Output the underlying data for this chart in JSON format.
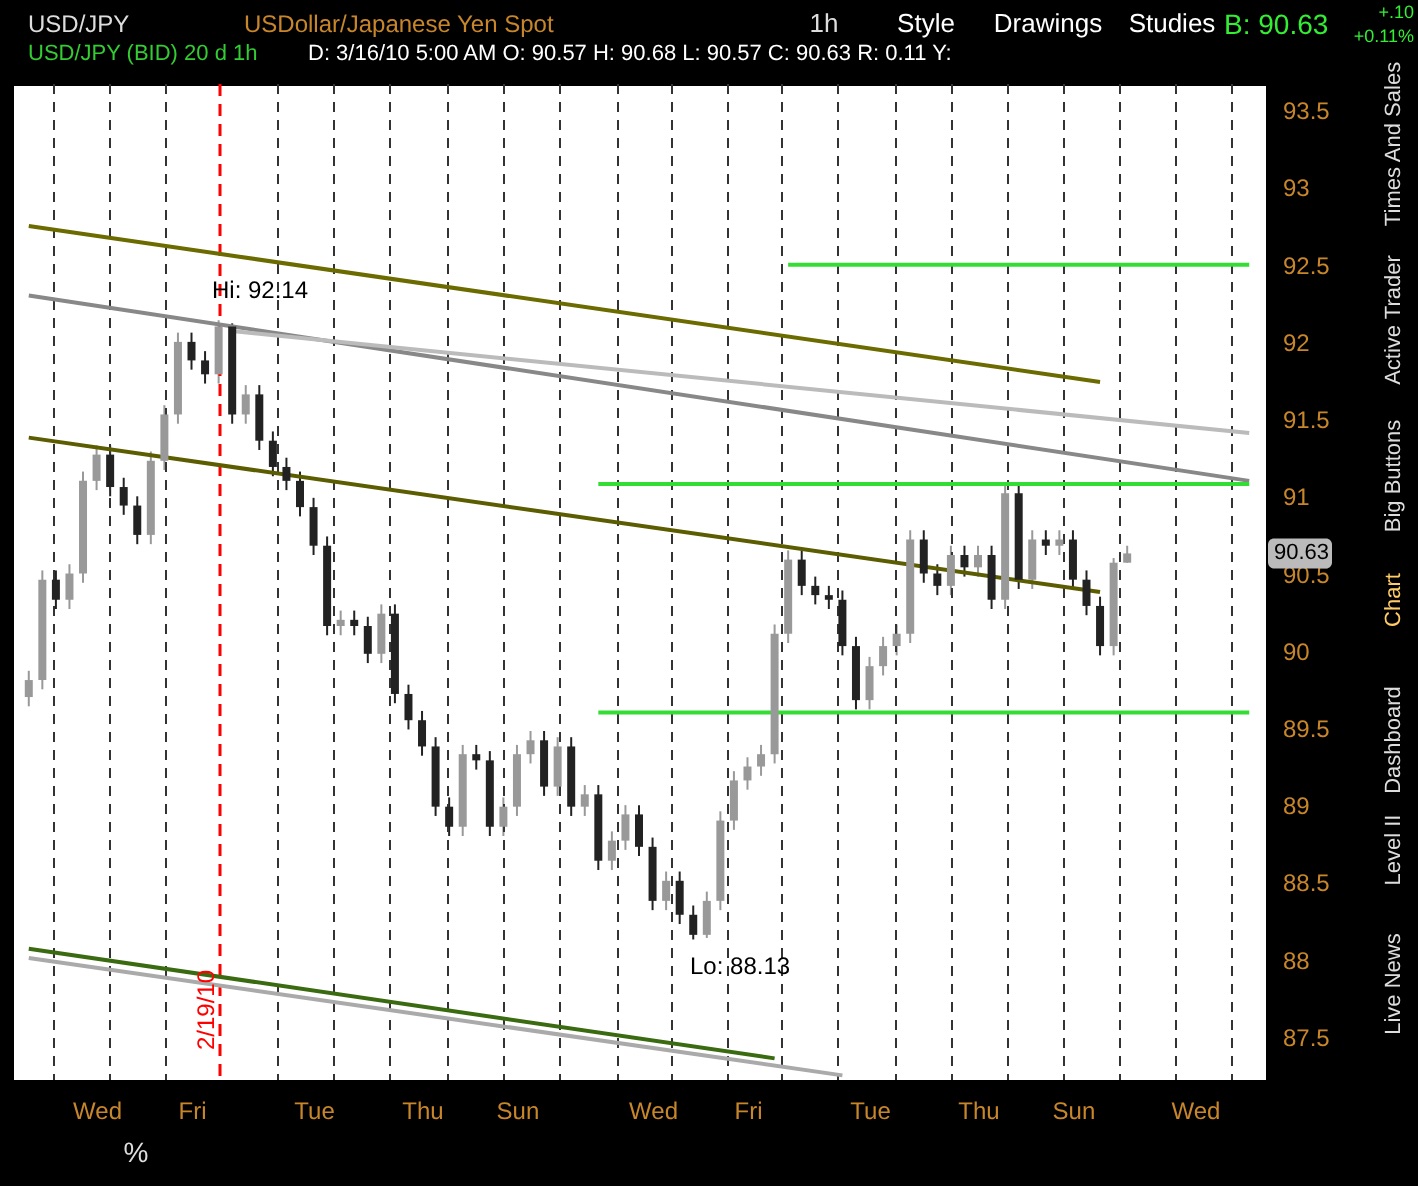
{
  "chart_data": {
    "type": "candlestick",
    "title": "USD/JPY (BID) 20 d 1h",
    "subtitle": "D: 3/16/10 5:00 AM   O: 90.57   H: 90.68   L: 90.57   C: 90.63   R: 0.11   Y:",
    "categories": [
      null,
      null,
      null,
      null,
      null,
      "Wed",
      null,
      null,
      null,
      null,
      null,
      null,
      "Fri",
      null,
      null,
      null,
      null,
      null,
      null,
      null,
      null,
      "Tue",
      null,
      null,
      null,
      null,
      null,
      null,
      null,
      "Thu",
      null,
      null,
      null,
      null,
      null,
      null,
      "Sun",
      null,
      null,
      null,
      null,
      null,
      null,
      null,
      null,
      null,
      "Wed",
      null,
      null,
      null,
      null,
      null,
      null,
      "Fri",
      null,
      null,
      null,
      null,
      null,
      null,
      null,
      null,
      "Tue",
      null,
      null,
      null,
      null,
      null,
      null,
      null,
      "Thu",
      null,
      null,
      null,
      null,
      null,
      null,
      "Sun",
      null,
      null,
      null,
      null,
      null,
      null,
      null,
      null,
      "Wed",
      null,
      null,
      null,
      null
    ],
    "ohlc": [
      [
        89.7,
        89.87,
        89.64,
        89.81
      ],
      [
        89.81,
        90.52,
        89.75,
        90.46
      ],
      [
        90.46,
        90.52,
        90.27,
        90.33
      ],
      [
        90.33,
        90.56,
        90.27,
        90.5
      ],
      [
        90.5,
        91.16,
        90.44,
        91.1
      ],
      [
        91.1,
        91.33,
        91.04,
        91.27
      ],
      [
        91.27,
        91.33,
        91.0,
        91.06
      ],
      [
        91.06,
        91.12,
        90.88,
        90.94
      ],
      [
        90.94,
        91.0,
        90.69,
        90.75
      ],
      [
        90.75,
        91.29,
        90.69,
        91.23
      ],
      [
        91.23,
        91.59,
        91.17,
        91.53
      ],
      [
        91.53,
        92.06,
        91.47,
        92.0
      ],
      [
        92.0,
        92.06,
        91.82,
        91.88
      ],
      [
        91.88,
        91.94,
        91.73,
        91.79
      ],
      [
        91.79,
        92.14,
        91.73,
        92.1
      ],
      [
        92.1,
        92.12,
        91.47,
        91.53
      ],
      [
        91.53,
        91.72,
        91.47,
        91.66
      ],
      [
        91.66,
        91.72,
        91.3,
        91.36
      ],
      [
        91.36,
        91.42,
        91.13,
        91.19
      ],
      [
        91.19,
        91.25,
        91.04,
        91.1
      ],
      [
        91.1,
        91.16,
        90.87,
        90.93
      ],
      [
        90.93,
        90.99,
        90.62,
        90.68
      ],
      [
        90.68,
        90.74,
        90.1,
        90.16
      ],
      [
        90.16,
        90.26,
        90.1,
        90.2
      ],
      [
        90.2,
        90.26,
        90.1,
        90.16
      ],
      [
        90.16,
        90.22,
        89.92,
        89.98
      ],
      [
        89.98,
        90.3,
        89.92,
        90.24
      ],
      [
        90.24,
        90.3,
        89.66,
        89.72
      ],
      [
        89.72,
        89.78,
        89.49,
        89.55
      ],
      [
        89.55,
        89.61,
        89.32,
        89.38
      ],
      [
        89.38,
        89.44,
        88.93,
        88.99
      ],
      [
        88.99,
        89.05,
        88.8,
        88.86
      ],
      [
        88.86,
        89.39,
        88.8,
        89.33
      ],
      [
        89.33,
        89.39,
        89.23,
        89.29
      ],
      [
        89.29,
        89.35,
        88.8,
        88.86
      ],
      [
        88.86,
        89.05,
        88.8,
        88.99
      ],
      [
        88.99,
        89.39,
        88.93,
        89.33
      ],
      [
        89.33,
        89.48,
        89.27,
        89.42
      ],
      [
        89.42,
        89.48,
        89.06,
        89.12
      ],
      [
        89.12,
        89.44,
        89.06,
        89.38
      ],
      [
        89.38,
        89.44,
        88.93,
        88.99
      ],
      [
        88.99,
        89.13,
        88.93,
        89.07
      ],
      [
        89.07,
        89.13,
        88.58,
        88.64
      ],
      [
        88.64,
        88.83,
        88.58,
        88.77
      ],
      [
        88.77,
        89.0,
        88.71,
        88.94
      ],
      [
        88.94,
        89.0,
        88.67,
        88.73
      ],
      [
        88.73,
        88.79,
        88.32,
        88.38
      ],
      [
        88.38,
        88.57,
        88.32,
        88.51
      ],
      [
        88.51,
        88.57,
        88.23,
        88.29
      ],
      [
        88.29,
        88.35,
        88.13,
        88.16
      ],
      [
        88.16,
        88.44,
        88.14,
        88.38
      ],
      [
        88.38,
        88.96,
        88.32,
        88.9
      ],
      [
        88.9,
        89.22,
        88.84,
        89.16
      ],
      [
        89.16,
        89.31,
        89.1,
        89.25
      ],
      [
        89.25,
        89.39,
        89.19,
        89.33
      ],
      [
        89.33,
        90.17,
        89.27,
        90.11
      ],
      [
        90.11,
        90.65,
        90.05,
        90.59
      ],
      [
        90.59,
        90.65,
        90.36,
        90.42
      ],
      [
        90.42,
        90.48,
        90.3,
        90.36
      ],
      [
        90.36,
        90.42,
        90.27,
        90.33
      ],
      [
        90.33,
        90.39,
        89.97,
        90.03
      ],
      [
        90.03,
        90.09,
        89.62,
        89.68
      ],
      [
        89.68,
        89.96,
        89.62,
        89.9
      ],
      [
        89.9,
        90.09,
        89.84,
        90.03
      ],
      [
        90.03,
        90.17,
        89.97,
        90.11
      ],
      [
        90.11,
        90.78,
        90.05,
        90.72
      ],
      [
        90.72,
        90.78,
        90.44,
        90.5
      ],
      [
        90.5,
        90.56,
        90.36,
        90.42
      ],
      [
        90.42,
        90.68,
        90.36,
        90.62
      ],
      [
        90.62,
        90.68,
        90.48,
        90.54
      ],
      [
        90.54,
        90.68,
        90.48,
        90.62
      ],
      [
        90.62,
        90.68,
        90.27,
        90.33
      ],
      [
        90.33,
        91.08,
        90.27,
        91.02
      ],
      [
        91.02,
        91.08,
        90.4,
        90.46
      ],
      [
        90.46,
        90.78,
        90.4,
        90.72
      ],
      [
        90.72,
        90.78,
        90.62,
        90.68
      ],
      [
        90.68,
        90.78,
        90.62,
        90.72
      ],
      [
        90.72,
        90.78,
        90.4,
        90.46
      ],
      [
        90.46,
        90.52,
        90.23,
        90.29
      ],
      [
        90.29,
        90.35,
        89.97,
        90.03
      ],
      [
        90.03,
        90.6,
        89.97,
        90.57
      ],
      [
        90.57,
        90.68,
        90.57,
        90.63
      ],
      null,
      null,
      null,
      null,
      null,
      null,
      null,
      null,
      null
    ],
    "colors": [
      "#999999",
      "#999999",
      "#222222",
      "#999999",
      "#999999",
      "#999999",
      "#222222",
      "#222222",
      "#222222",
      "#999999",
      "#999999",
      "#999999",
      "#222222",
      "#222222",
      "#999999",
      "#222222",
      "#999999",
      "#222222",
      "#222222",
      "#222222",
      "#222222",
      "#222222",
      "#222222",
      "#999999",
      "#222222",
      "#222222",
      "#999999",
      "#222222",
      "#222222",
      "#222222",
      "#222222",
      "#222222",
      "#999999",
      "#222222",
      "#222222",
      "#999999",
      "#999999",
      "#999999",
      "#222222",
      "#999999",
      "#222222",
      "#999999",
      "#222222",
      "#999999",
      "#999999",
      "#222222",
      "#222222",
      "#999999",
      "#222222",
      "#222222",
      "#999999",
      "#999999",
      "#999999",
      "#999999",
      "#999999",
      "#999999",
      "#999999",
      "#222222",
      "#222222",
      "#222222",
      "#222222",
      "#222222",
      "#999999",
      "#999999",
      "#999999",
      "#999999",
      "#222222",
      "#222222",
      "#999999",
      "#222222",
      "#999999",
      "#222222",
      "#999999",
      "#222222",
      "#999999",
      "#222222",
      "#999999",
      "#222222",
      "#222222",
      "#222222",
      "#999999",
      "#999999",
      null,
      null,
      null,
      null,
      null,
      null,
      null,
      null,
      null
    ],
    "series": [
      {
        "type": "line",
        "color": "#6b6b00",
        "values": [
          92.75,
          null,
          null,
          null,
          null,
          null,
          null,
          null,
          null,
          null,
          null,
          null,
          null,
          null,
          null,
          null,
          null,
          null,
          null,
          null,
          null,
          null,
          null,
          null,
          null,
          null,
          null,
          null,
          null,
          null,
          null,
          null,
          null,
          null,
          null,
          null,
          null,
          null,
          null,
          null,
          null,
          null,
          null,
          null,
          null,
          null,
          null,
          null,
          null,
          null,
          null,
          null,
          null,
          null,
          null,
          null,
          null,
          null,
          null,
          null,
          null,
          null,
          null,
          null,
          null,
          null,
          null,
          null,
          null,
          null,
          null,
          null,
          null,
          null,
          null,
          null,
          null,
          null,
          null,
          91.74,
          null,
          null,
          null,
          null,
          null,
          null,
          null,
          null,
          null,
          null,
          null
        ]
      },
      {
        "type": "line",
        "color": "#5c5c00",
        "values": [
          91.38,
          null,
          null,
          null,
          null,
          null,
          null,
          null,
          null,
          null,
          null,
          null,
          null,
          null,
          null,
          null,
          null,
          null,
          null,
          null,
          null,
          null,
          null,
          null,
          null,
          null,
          null,
          null,
          null,
          null,
          null,
          null,
          null,
          null,
          null,
          null,
          null,
          null,
          null,
          null,
          null,
          null,
          null,
          null,
          null,
          null,
          null,
          null,
          null,
          null,
          null,
          null,
          null,
          null,
          null,
          null,
          null,
          null,
          null,
          null,
          null,
          null,
          null,
          null,
          null,
          null,
          null,
          null,
          null,
          null,
          null,
          null,
          null,
          null,
          null,
          null,
          null,
          null,
          null,
          90.38,
          null,
          null,
          null,
          null,
          null,
          null,
          null,
          null,
          null,
          null,
          null
        ]
      },
      {
        "type": "line",
        "color": "#3a6b10",
        "values": [
          88.07,
          null,
          null,
          null,
          null,
          null,
          null,
          null,
          null,
          null,
          null,
          null,
          null,
          null,
          null,
          null,
          null,
          null,
          null,
          null,
          null,
          null,
          null,
          null,
          null,
          null,
          null,
          null,
          null,
          null,
          null,
          null,
          null,
          null,
          null,
          null,
          null,
          null,
          null,
          null,
          null,
          null,
          null,
          null,
          null,
          null,
          null,
          null,
          null,
          null,
          null,
          null,
          null,
          null,
          null,
          87.36,
          null,
          null,
          null,
          null,
          null,
          null,
          null,
          null,
          null,
          null,
          null,
          null,
          null,
          null,
          null,
          null,
          null,
          null,
          null,
          null,
          null,
          null,
          null,
          null,
          null,
          null,
          null,
          null,
          null,
          null,
          null,
          null,
          null,
          null,
          null
        ]
      },
      {
        "type": "line",
        "color": "#888888",
        "values": [
          92.3,
          null,
          null,
          null,
          null,
          null,
          null,
          null,
          null,
          null,
          null,
          null,
          null,
          null,
          null,
          null,
          null,
          null,
          null,
          null,
          null,
          null,
          null,
          null,
          null,
          null,
          null,
          null,
          null,
          null,
          null,
          null,
          null,
          null,
          null,
          null,
          null,
          null,
          null,
          null,
          null,
          null,
          null,
          null,
          null,
          null,
          null,
          null,
          null,
          null,
          null,
          null,
          null,
          null,
          null,
          null,
          null,
          null,
          null,
          null,
          null,
          null,
          null,
          null,
          null,
          null,
          null,
          null,
          null,
          null,
          null,
          null,
          null,
          null,
          null,
          null,
          null,
          null,
          null,
          null,
          null,
          null,
          null,
          null,
          null,
          null,
          null,
          null,
          null,
          null,
          91.1
        ]
      },
      {
        "type": "line",
        "color": "#bbbbbb",
        "values": [
          null,
          null,
          null,
          null,
          null,
          null,
          null,
          null,
          null,
          null,
          null,
          null,
          null,
          null,
          null,
          92.07,
          null,
          null,
          null,
          null,
          null,
          null,
          null,
          null,
          null,
          null,
          null,
          null,
          null,
          null,
          null,
          null,
          null,
          null,
          null,
          null,
          null,
          null,
          null,
          null,
          null,
          null,
          null,
          null,
          null,
          null,
          null,
          null,
          null,
          null,
          null,
          null,
          null,
          null,
          null,
          null,
          null,
          null,
          null,
          null,
          null,
          null,
          null,
          null,
          null,
          null,
          null,
          null,
          null,
          null,
          null,
          null,
          null,
          null,
          null,
          null,
          null,
          null,
          null,
          null,
          null,
          null,
          null,
          null,
          null,
          null,
          null,
          null,
          null,
          null,
          91.41
        ]
      },
      {
        "type": "line",
        "color": "#aaaaaa",
        "values": [
          88.01,
          null,
          null,
          null,
          null,
          null,
          null,
          null,
          null,
          null,
          null,
          null,
          null,
          null,
          null,
          null,
          null,
          null,
          null,
          null,
          null,
          null,
          null,
          null,
          null,
          null,
          null,
          null,
          null,
          null,
          null,
          null,
          null,
          null,
          null,
          null,
          null,
          null,
          null,
          null,
          null,
          null,
          null,
          null,
          null,
          null,
          null,
          null,
          null,
          null,
          null,
          null,
          null,
          null,
          null,
          null,
          null,
          null,
          null,
          null,
          87.25,
          null,
          null,
          null,
          null,
          null,
          null,
          null,
          null,
          null,
          null,
          null,
          null,
          null,
          null,
          null,
          null,
          null,
          null,
          null,
          null,
          null,
          null,
          null,
          null,
          null,
          null,
          null,
          null,
          null,
          null
        ]
      },
      {
        "type": "line",
        "color": "#33dd33",
        "values": [
          null,
          null,
          null,
          null,
          null,
          null,
          null,
          null,
          null,
          null,
          null,
          null,
          null,
          null,
          null,
          null,
          null,
          null,
          null,
          null,
          null,
          null,
          null,
          null,
          null,
          null,
          null,
          null,
          null,
          null,
          null,
          null,
          null,
          null,
          null,
          null,
          null,
          null,
          null,
          null,
          null,
          null,
          null,
          null,
          null,
          null,
          null,
          null,
          null,
          null,
          null,
          null,
          null,
          null,
          null,
          null,
          92.5,
          null,
          null,
          null,
          null,
          null,
          null,
          null,
          null,
          null,
          null,
          null,
          null,
          null,
          null,
          null,
          null,
          null,
          null,
          null,
          null,
          null,
          null,
          null,
          null,
          null,
          null,
          null,
          null,
          null,
          null,
          null,
          null,
          null,
          92.5
        ]
      },
      {
        "type": "line",
        "color": "#33dd33",
        "values": [
          null,
          null,
          null,
          null,
          null,
          null,
          null,
          null,
          null,
          null,
          null,
          null,
          null,
          null,
          null,
          null,
          null,
          null,
          null,
          null,
          null,
          null,
          null,
          null,
          null,
          null,
          null,
          null,
          null,
          null,
          null,
          null,
          null,
          null,
          null,
          null,
          null,
          null,
          null,
          null,
          null,
          null,
          91.08,
          null,
          null,
          null,
          null,
          null,
          null,
          null,
          null,
          null,
          null,
          null,
          null,
          null,
          null,
          null,
          null,
          null,
          null,
          null,
          null,
          null,
          null,
          null,
          null,
          null,
          null,
          null,
          null,
          null,
          null,
          null,
          null,
          null,
          null,
          null,
          null,
          null,
          null,
          null,
          null,
          null,
          null,
          null,
          null,
          null,
          null,
          null,
          91.08
        ]
      },
      {
        "type": "line",
        "color": "#33dd33",
        "values": [
          null,
          null,
          null,
          null,
          null,
          null,
          null,
          null,
          null,
          null,
          null,
          null,
          null,
          null,
          null,
          null,
          null,
          null,
          null,
          null,
          null,
          null,
          null,
          null,
          null,
          null,
          null,
          null,
          null,
          null,
          null,
          null,
          null,
          null,
          null,
          null,
          null,
          null,
          null,
          null,
          null,
          null,
          89.6,
          null,
          null,
          null,
          null,
          null,
          null,
          null,
          null,
          null,
          null,
          null,
          null,
          null,
          null,
          null,
          null,
          null,
          null,
          null,
          null,
          null,
          null,
          null,
          null,
          null,
          null,
          null,
          null,
          null,
          null,
          null,
          null,
          null,
          null,
          null,
          null,
          null,
          null,
          null,
          null,
          null,
          null,
          null,
          null,
          null,
          null,
          null,
          89.6
        ]
      }
    ],
    "ylim": [
      87.22,
      93.67
    ],
    "yticks": [
      87.5,
      88,
      88.5,
      89,
      89.5,
      90,
      90.5,
      91,
      91.5,
      92,
      92.5,
      93,
      93.5
    ],
    "annotations": [
      "USD/JPY",
      "USDollar/Japanese Yen Spot",
      "1h",
      "Style",
      "Drawings",
      "Studies",
      "B: 90.63",
      "+.10",
      "+0.11%",
      "Times And Sales",
      "Active Trader",
      "Big Buttons",
      "Chart",
      "Dashboard",
      "Level II",
      "Live News",
      "%",
      "2/19/10",
      "Hi: 92.14",
      "Lo: 88.13",
      {
        "text": "90.63",
        "y": 90.63
      }
    ]
  }
}
